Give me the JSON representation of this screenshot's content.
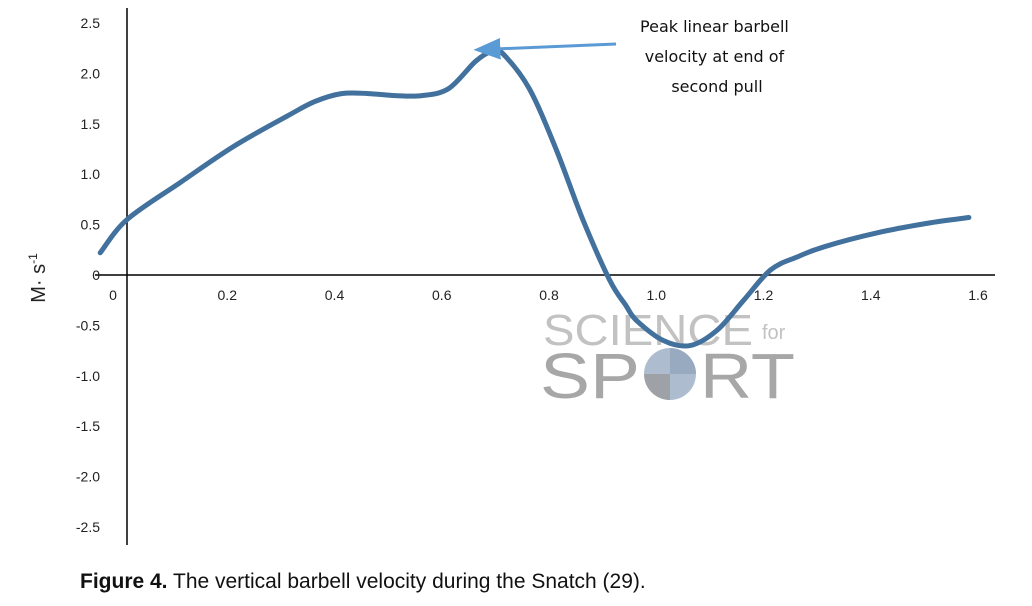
{
  "chart_data": {
    "type": "line",
    "ylabel": "M· s",
    "ylabel_sup": "-1",
    "xlim": [
      0,
      1.6
    ],
    "ylim": [
      -2.5,
      2.5
    ],
    "x_ticks": [
      "0.2",
      "0.4",
      "0.6",
      "0.8",
      "1.0",
      "1.2",
      "1.4",
      "1.6"
    ],
    "x_tick_values": [
      0.2,
      0.4,
      0.6,
      0.8,
      1.0,
      1.2,
      1.4,
      1.6
    ],
    "x_zero_label": "0",
    "y_ticks": [
      "2.5",
      "2.0",
      "1.5",
      "1.0",
      "0.5",
      "0",
      "-0.5",
      "-1.0",
      "-1.5",
      "-2.0",
      "-2.5"
    ],
    "y_tick_values": [
      2.5,
      2.0,
      1.5,
      1.0,
      0.5,
      0,
      -0.5,
      -1.0,
      -1.5,
      -2.0,
      -2.5
    ],
    "grid": false,
    "series": [
      {
        "color": "#41719c",
        "x": [
          -0.05,
          0.0,
          0.1,
          0.2,
          0.3,
          0.35,
          0.4,
          0.45,
          0.5,
          0.55,
          0.6,
          0.65,
          0.68,
          0.7,
          0.75,
          0.8,
          0.85,
          0.9,
          0.93,
          0.95,
          1.0,
          1.05,
          1.1,
          1.15,
          1.2,
          1.25,
          1.3,
          1.4,
          1.5,
          1.57
        ],
        "y": [
          0.22,
          0.55,
          0.92,
          1.28,
          1.58,
          1.72,
          1.8,
          1.8,
          1.78,
          1.78,
          1.85,
          2.12,
          2.22,
          2.2,
          1.85,
          1.25,
          0.55,
          -0.05,
          -0.3,
          -0.45,
          -0.65,
          -0.7,
          -0.55,
          -0.25,
          0.05,
          0.18,
          0.28,
          0.42,
          0.52,
          0.57
        ]
      }
    ],
    "annotation": {
      "lines": [
        "Peak linear barbell",
        "velocity at end of",
        "second pull"
      ],
      "target": [
        0.7,
        2.22
      ]
    }
  },
  "watermark": {
    "top": "SCIENCE",
    "small": "for",
    "bottom_left": "SP",
    "bottom_right": "RT"
  },
  "caption": {
    "bold": "Figure 4.",
    "text": " The vertical barbell velocity during the Snatch (29)."
  }
}
